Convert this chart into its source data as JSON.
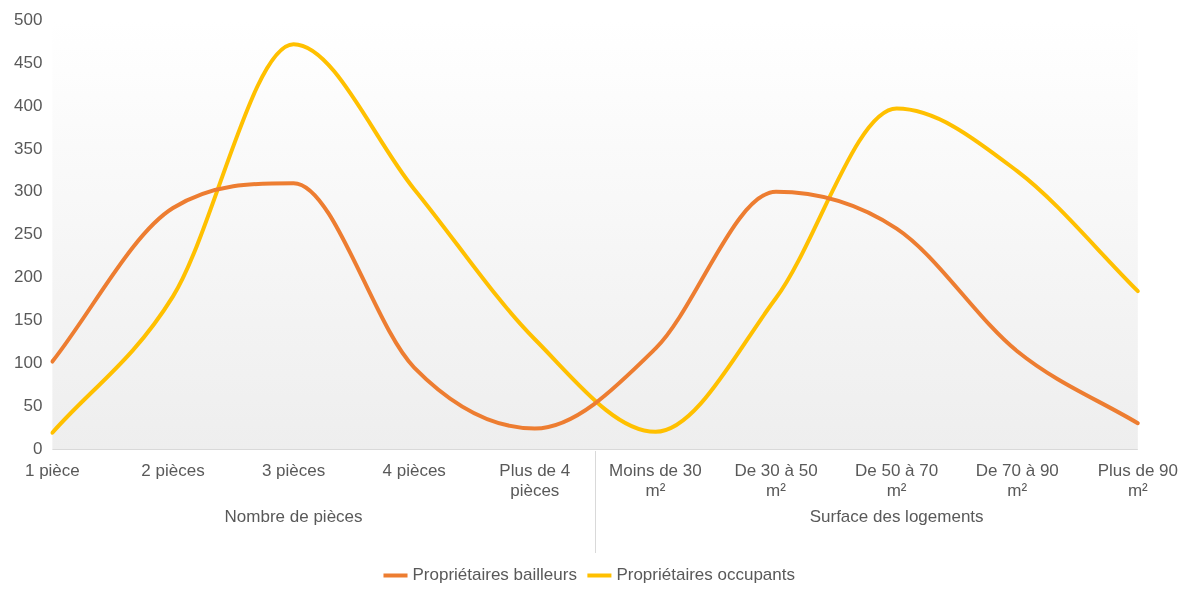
{
  "chart_data": {
    "type": "line",
    "categories": [
      "1 pièce",
      "2 pièces",
      "3 pièces",
      "4 pièces",
      "Plus de 4 pièces",
      "Moins de 30 m²",
      "De 30 à 50 m²",
      "De 50 à 70 m²",
      "De 70 à 90 m²",
      "Plus de 90 m²"
    ],
    "series": [
      {
        "name": "Propriétaires bailleurs",
        "color": "#ed7d31",
        "values": [
          102,
          281,
          310,
          95,
          24,
          117,
          300,
          257,
          114,
          30
        ]
      },
      {
        "name": "Propriétaires occupants",
        "color": "#ffc000",
        "values": [
          19,
          178,
          472,
          303,
          128,
          20,
          176,
          397,
          324,
          184
        ]
      }
    ],
    "ylim": [
      0,
      500
    ],
    "yticks": [
      0,
      50,
      100,
      150,
      200,
      250,
      300,
      350,
      400,
      450,
      500
    ],
    "annotations": [
      "Nombre de pièces",
      "Surface des logements"
    ],
    "grid": false,
    "legend": "bottom",
    "marker": "none",
    "line_style": "solid"
  }
}
